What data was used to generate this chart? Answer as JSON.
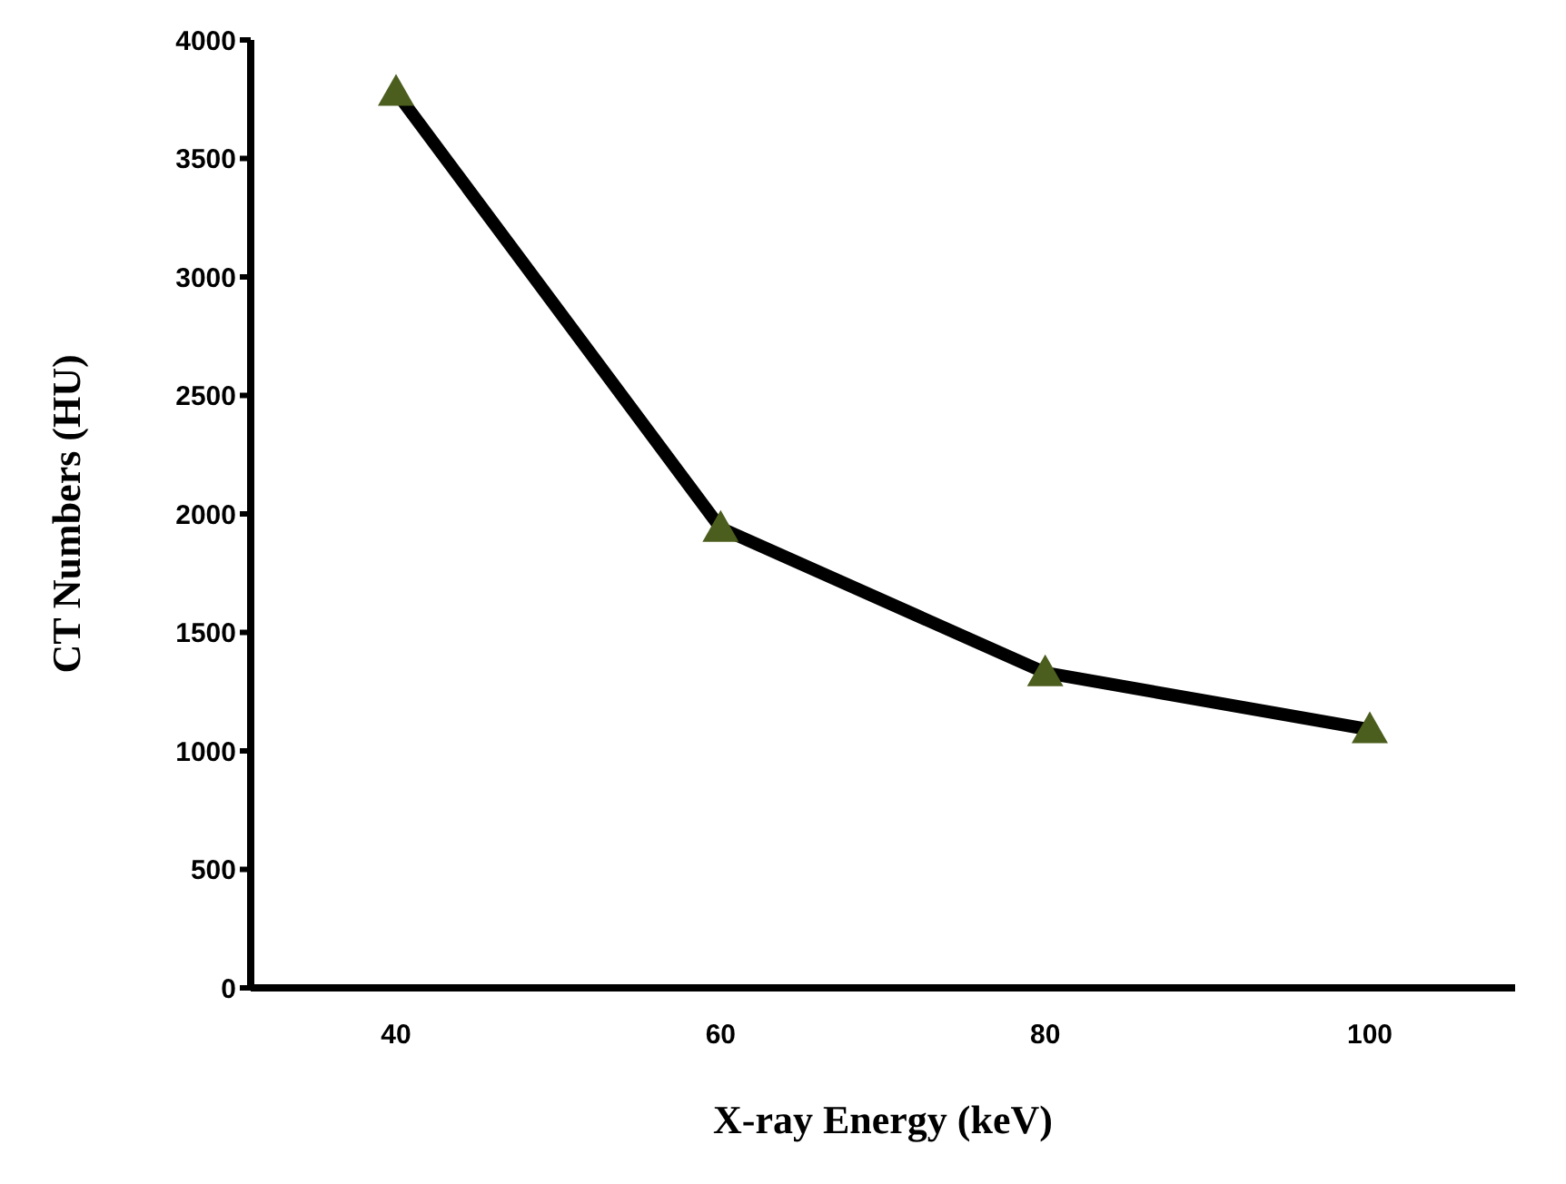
{
  "chart_data": {
    "type": "line",
    "xlabel": "X-ray Energy (keV)",
    "ylabel": "CT Numbers (HU)",
    "categories": [
      "40",
      "60",
      "80",
      "100"
    ],
    "series": [
      {
        "color": "#000000",
        "colors": [
          "#4b5e1e",
          "#4b5e1e",
          "#4b5e1e",
          "#4b5e1e"
        ],
        "values": [
          3780,
          1940,
          1330,
          1090
        ]
      }
    ],
    "marker": "triangle",
    "line_style": "solid",
    "ylim": [
      0,
      4000
    ],
    "yticks": [
      0,
      500,
      1000,
      1500,
      2000,
      2500,
      3000,
      3500,
      4000
    ],
    "grid": false,
    "legend": false
  }
}
